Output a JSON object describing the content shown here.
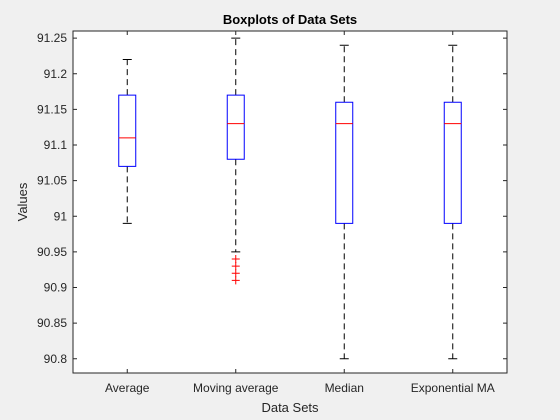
{
  "chart_data": {
    "type": "boxplot",
    "title": "Boxplots of Data Sets",
    "xlabel": "Data Sets",
    "ylabel": "Values",
    "ylim": [
      90.78,
      91.26
    ],
    "y_ticks": [
      90.8,
      90.85,
      90.9,
      90.95,
      91,
      91.05,
      91.1,
      91.15,
      91.2,
      91.25
    ],
    "y_tick_labels": [
      "90.8",
      "90.85",
      "90.9",
      "90.95",
      "91",
      "91.05",
      "91.1",
      "91.15",
      "91.2",
      "91.25"
    ],
    "grid": false,
    "categories": [
      "Average",
      "Moving average",
      "Median",
      "Exponential MA"
    ],
    "boxes": [
      {
        "whisker_low": 90.99,
        "q1": 91.07,
        "median": 91.11,
        "q3": 91.17,
        "whisker_high": 91.22,
        "outliers": []
      },
      {
        "whisker_low": 90.95,
        "q1": 91.08,
        "median": 91.13,
        "q3": 91.17,
        "whisker_high": 91.25,
        "outliers": [
          90.94,
          90.93,
          90.92,
          90.91
        ]
      },
      {
        "whisker_low": 90.8,
        "q1": 90.99,
        "median": 91.13,
        "q3": 91.16,
        "whisker_high": 91.24,
        "outliers": []
      },
      {
        "whisker_low": 90.8,
        "q1": 90.99,
        "median": 91.13,
        "q3": 91.16,
        "whisker_high": 91.24,
        "outliers": []
      }
    ],
    "colors": {
      "box": "#0000ff",
      "median": "#ff0000",
      "whisker": "#000000",
      "outlier": "#ff0000",
      "axes": "#262626",
      "plot_background": "#ffffff",
      "figure_background": "#f0f0f0"
    }
  }
}
